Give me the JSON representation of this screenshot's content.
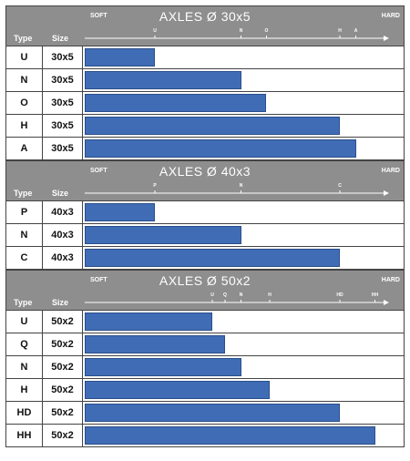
{
  "chart_data": [
    {
      "type": "bar",
      "title": "AXLES Ø 30x5",
      "column_headers": {
        "type": "Type",
        "size": "Size"
      },
      "scale_labels": {
        "min": "SOFT",
        "max": "HARD"
      },
      "scale_ticks": [
        {
          "label": "U",
          "value": 0.22
        },
        {
          "label": "N",
          "value": 0.49
        },
        {
          "label": "O",
          "value": 0.57
        },
        {
          "label": "H",
          "value": 0.8
        },
        {
          "label": "A",
          "value": 0.85
        }
      ],
      "categories": [
        "U",
        "N",
        "O",
        "H",
        "A"
      ],
      "sizes": [
        "30x5",
        "30x5",
        "30x5",
        "30x5",
        "30x5"
      ],
      "values": [
        0.22,
        0.49,
        0.57,
        0.8,
        0.85
      ],
      "ylim": [
        0,
        1
      ]
    },
    {
      "type": "bar",
      "title": "AXLES Ø 40x3",
      "column_headers": {
        "type": "Type",
        "size": "Size"
      },
      "scale_labels": {
        "min": "SOFT",
        "max": "HARD"
      },
      "scale_ticks": [
        {
          "label": "P",
          "value": 0.22
        },
        {
          "label": "N",
          "value": 0.49
        },
        {
          "label": "C",
          "value": 0.8
        }
      ],
      "categories": [
        "P",
        "N",
        "C"
      ],
      "sizes": [
        "40x3",
        "40x3",
        "40x3"
      ],
      "values": [
        0.22,
        0.49,
        0.8
      ],
      "ylim": [
        0,
        1
      ]
    },
    {
      "type": "bar",
      "title": "AXLES Ø 50x2",
      "column_headers": {
        "type": "Type",
        "size": "Size"
      },
      "scale_labels": {
        "min": "SOFT",
        "max": "HARD"
      },
      "scale_ticks": [
        {
          "label": "U",
          "value": 0.4
        },
        {
          "label": "Q",
          "value": 0.44
        },
        {
          "label": "N",
          "value": 0.49
        },
        {
          "label": "H",
          "value": 0.58
        },
        {
          "label": "HD",
          "value": 0.8
        },
        {
          "label": "HH",
          "value": 0.91
        }
      ],
      "categories": [
        "U",
        "Q",
        "N",
        "H",
        "HD",
        "HH"
      ],
      "sizes": [
        "50x2",
        "50x2",
        "50x2",
        "50x2",
        "50x2",
        "50x2"
      ],
      "values": [
        0.4,
        0.44,
        0.49,
        0.58,
        0.8,
        0.91
      ],
      "ylim": [
        0,
        1
      ]
    }
  ],
  "colors": {
    "bar": "#3f6cb5",
    "header": "#8e8e8e"
  }
}
